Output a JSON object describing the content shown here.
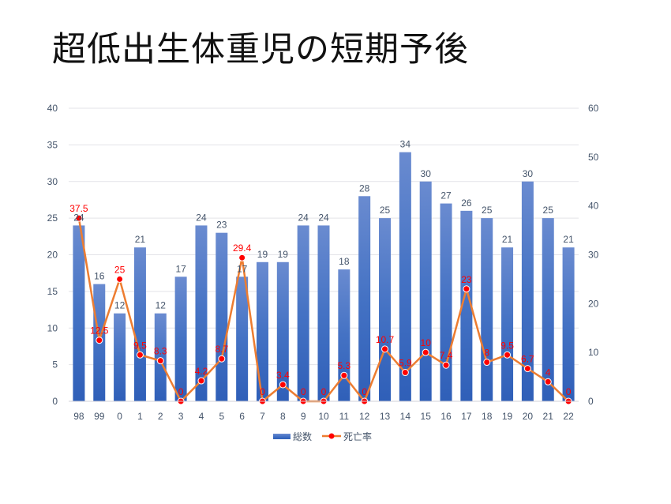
{
  "title": "超低出生体重児の短期予後",
  "chart_data": {
    "type": "bar+line",
    "title": "超低出生体重児の短期予後",
    "categories": [
      "98",
      "99",
      "0",
      "1",
      "2",
      "3",
      "4",
      "5",
      "6",
      "7",
      "8",
      "9",
      "10",
      "11",
      "12",
      "13",
      "14",
      "15",
      "16",
      "17",
      "18",
      "19",
      "20",
      "21",
      "22"
    ],
    "series": [
      {
        "name": "総数",
        "type": "bar",
        "axis": "left",
        "color": "#4472c4",
        "values": [
          24,
          16,
          12,
          21,
          12,
          17,
          24,
          23,
          17,
          19,
          19,
          24,
          24,
          18,
          28,
          25,
          34,
          30,
          27,
          26,
          25,
          21,
          30,
          25,
          21
        ]
      },
      {
        "name": "死亡率",
        "type": "line",
        "axis": "right",
        "color": "#ed7d31",
        "marker_color": "#ff0000",
        "values": [
          37.5,
          12.5,
          25,
          9.5,
          8.3,
          0,
          4.2,
          8.7,
          29.4,
          0,
          3.4,
          0,
          0,
          5.3,
          0,
          10.7,
          5.9,
          10,
          7.4,
          23,
          8,
          9.5,
          6.7,
          4,
          0
        ]
      }
    ],
    "y_left": {
      "range": [
        0,
        40
      ],
      "ticks": [
        "0",
        "5",
        "10",
        "15",
        "20",
        "25",
        "30",
        "35",
        "40"
      ]
    },
    "y_right": {
      "range": [
        0,
        60
      ],
      "ticks": [
        "0",
        "10",
        "20",
        "30",
        "40",
        "50",
        "60"
      ]
    },
    "grid": true,
    "legend": "bottom",
    "data_labels": true
  }
}
